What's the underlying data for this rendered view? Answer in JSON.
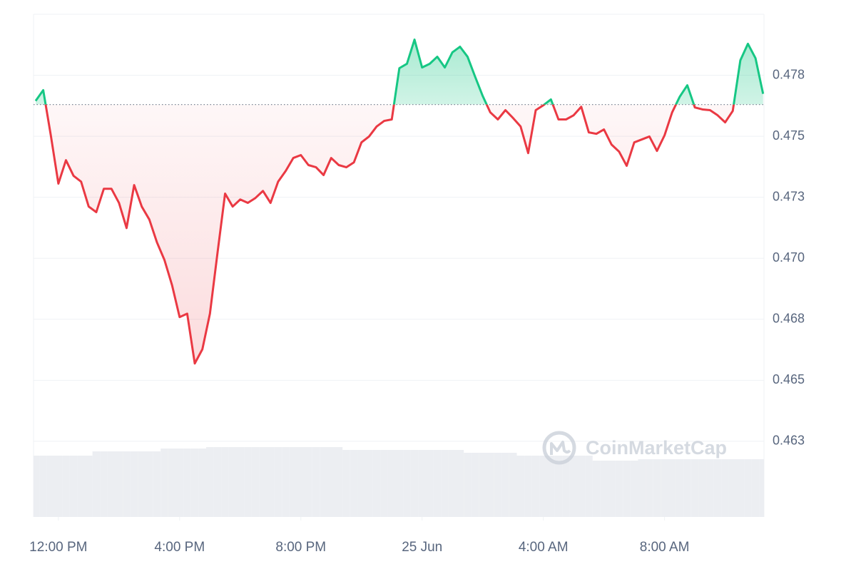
{
  "chart_data": {
    "type": "line",
    "watermark": "CoinMarketCap",
    "up_color": "#16c784",
    "down_color": "#ea3943",
    "volume_color": "#eceef2",
    "grid": true,
    "baseline": 0.4763,
    "xlim": [
      11.18,
      35.28
    ],
    "xticks": [
      {
        "value": 12,
        "label": "12:00 PM"
      },
      {
        "value": 16,
        "label": "4:00 PM"
      },
      {
        "value": 20,
        "label": "8:00 PM"
      },
      {
        "value": 24,
        "label": "25 Jun"
      },
      {
        "value": 28,
        "label": "4:00 AM"
      },
      {
        "value": 32,
        "label": "8:00 AM"
      }
    ],
    "ylim": [
      0.4594,
      0.48
    ],
    "yticks": [
      {
        "value": 0.4625,
        "label": "0.463"
      },
      0.465,
      {
        "value": 0.4675,
        "label": "0.468"
      },
      {
        "value": 0.47,
        "label": "0.470"
      },
      {
        "value": 0.4725,
        "label": "0.473"
      },
      0.475,
      {
        "value": 0.4775,
        "label": "0.478"
      }
    ],
    "y2lim": [
      0,
      100
    ],
    "x": [
      11.25,
      11.5,
      11.75,
      12,
      12.25,
      12.5,
      12.75,
      13,
      13.25,
      13.5,
      13.75,
      14,
      14.25,
      14.5,
      14.75,
      15,
      15.25,
      15.5,
      15.75,
      16,
      16.25,
      16.5,
      16.75,
      17,
      17.25,
      17.5,
      17.75,
      18,
      18.25,
      18.5,
      18.75,
      19,
      19.25,
      19.5,
      19.75,
      20,
      20.25,
      20.5,
      20.75,
      21,
      21.25,
      21.5,
      21.75,
      22,
      22.25,
      22.5,
      22.75,
      23,
      23.25,
      23.5,
      23.75,
      24,
      24.25,
      24.5,
      24.75,
      25,
      25.25,
      25.5,
      25.75,
      26,
      26.25,
      26.5,
      26.75,
      27,
      27.25,
      27.5,
      27.75,
      28,
      28.25,
      28.5,
      28.75,
      29,
      29.25,
      29.5,
      29.75,
      30,
      30.25,
      30.5,
      30.75,
      31,
      31.25,
      31.5,
      31.75,
      32,
      32.25,
      32.5,
      32.75,
      33,
      33.25,
      33.5,
      33.75,
      34,
      34.25,
      34.5,
      34.75,
      35,
      35.25
    ],
    "values": [
      0.47645,
      0.47689,
      0.47504,
      0.47306,
      0.47402,
      0.47338,
      0.47314,
      0.47212,
      0.47189,
      0.47285,
      0.47285,
      0.47227,
      0.47124,
      0.473,
      0.47212,
      0.47159,
      0.47066,
      0.46993,
      0.4689,
      0.46759,
      0.46773,
      0.46569,
      0.46627,
      0.46773,
      0.47022,
      0.47265,
      0.47212,
      0.47241,
      0.47227,
      0.47247,
      0.47276,
      0.47227,
      0.47314,
      0.47358,
      0.47411,
      0.47423,
      0.47382,
      0.47373,
      0.47341,
      0.47411,
      0.47382,
      0.47373,
      0.47393,
      0.47475,
      0.47499,
      0.4754,
      0.47563,
      0.47569,
      0.47779,
      0.47797,
      0.47896,
      0.47782,
      0.47797,
      0.47826,
      0.47782,
      0.47844,
      0.47867,
      0.47826,
      0.47744,
      0.47665,
      0.47598,
      0.47569,
      0.47607,
      0.47575,
      0.4754,
      0.47431,
      0.47607,
      0.47627,
      0.47651,
      0.47569,
      0.47569,
      0.47586,
      0.47621,
      0.47516,
      0.4751,
      0.47528,
      0.47466,
      0.47437,
      0.47379,
      0.47475,
      0.47487,
      0.47499,
      0.4744,
      0.47504,
      0.47598,
      0.47662,
      0.47709,
      0.47618,
      0.4761,
      0.47607,
      0.47586,
      0.47557,
      0.47604,
      0.47811,
      0.47879,
      0.4782,
      0.47674
    ],
    "volume": [
      86,
      86,
      86,
      86,
      86,
      86,
      86,
      86,
      92,
      92,
      92,
      92,
      92,
      92,
      92,
      92,
      92,
      96,
      96,
      96,
      96,
      96,
      96,
      98,
      98,
      98,
      98,
      98,
      98,
      98,
      98,
      98,
      98,
      98,
      98,
      98,
      98,
      98,
      98,
      98,
      98,
      94,
      94,
      94,
      94,
      94,
      94,
      94,
      94,
      94,
      94,
      94,
      94,
      94,
      94,
      94,
      94,
      90,
      90,
      90,
      90,
      90,
      90,
      90,
      86,
      86,
      86,
      86,
      86,
      86,
      86,
      86,
      86,
      86,
      79,
      79,
      79,
      79,
      79,
      79,
      81,
      81,
      81,
      81,
      81,
      81,
      81,
      81,
      81,
      81,
      81,
      81,
      81,
      81,
      81,
      81,
      81
    ]
  }
}
